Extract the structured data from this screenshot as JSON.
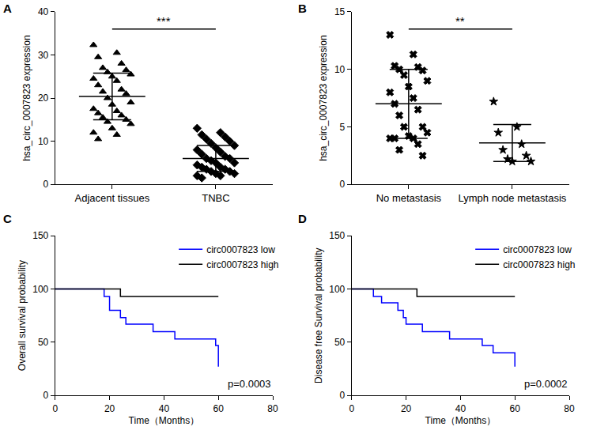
{
  "chart_data": [
    {
      "type": "dotplot",
      "panel": "A",
      "y_label": "hsa_circ_0007823 expression",
      "categories": [
        "Adjacent tissues",
        "TNBC"
      ],
      "groups": [
        {
          "marker": "triangle-up",
          "mean": 20.4,
          "sd": 5.4,
          "values": [
            32.3,
            30.5,
            29.5,
            28.0,
            27.0,
            26.5,
            26.0,
            25.5,
            25.0,
            24.5,
            24.0,
            23.0,
            22.0,
            21.5,
            21.0,
            20.0,
            19.0,
            18.5,
            17.5,
            17.0,
            16.5,
            16.0,
            15.5,
            15.0,
            14.5,
            14.0,
            13.0,
            12.0,
            11.5,
            10.5
          ]
        },
        {
          "marker": "diamond",
          "mean": 6.0,
          "sd": 3.0,
          "values": [
            13.0,
            12.0,
            11.5,
            11.0,
            10.5,
            10.0,
            9.5,
            9.0,
            8.5,
            8.0,
            7.5,
            7.0,
            6.5,
            6.0,
            6.0,
            5.5,
            5.0,
            5.0,
            4.5,
            4.0,
            4.0,
            3.5,
            3.5,
            3.0,
            3.0,
            2.5,
            2.5,
            2.0,
            2.0,
            1.5
          ]
        }
      ],
      "ylim": [
        0,
        40
      ],
      "yticks": [
        0,
        10,
        20,
        30,
        40
      ],
      "annotations": [
        "***"
      ],
      "grid": false,
      "color": "#000000"
    },
    {
      "type": "dotplot",
      "panel": "B",
      "y_label": "hsa_circ_0007823 expression",
      "categories": [
        "No metastasis",
        "Lymph node metastasis"
      ],
      "groups": [
        {
          "marker": "x",
          "mean": 7.0,
          "sd": 3.0,
          "values": [
            13.0,
            11.3,
            10.3,
            10.2,
            10.0,
            9.9,
            9.5,
            9.0,
            8.5,
            8.0,
            7.5,
            7.0,
            6.5,
            6.0,
            5.0,
            5.0,
            4.5,
            4.2,
            4.0,
            4.0,
            4.0,
            3.5,
            3.0,
            2.5
          ]
        },
        {
          "marker": "star",
          "mean": 3.6,
          "sd": 1.6,
          "values": [
            7.2,
            5.0,
            4.5,
            3.5,
            3.0,
            2.5,
            2.2,
            2.0,
            2.0
          ]
        }
      ],
      "ylim": [
        0,
        15
      ],
      "yticks": [
        0,
        5,
        10,
        15
      ],
      "annotations": [
        "**"
      ],
      "grid": false,
      "color": "#000000"
    },
    {
      "type": "line",
      "panel": "C",
      "x_label": "Time（Months）",
      "y_label": "Overall survival probability",
      "series": [
        {
          "name": "circ0007823 low",
          "color": "#0000ff",
          "x": [
            0,
            18,
            20,
            24,
            26,
            36,
            44,
            59,
            60
          ],
          "values": [
            100,
            93,
            80,
            73,
            67,
            60,
            53,
            47,
            27
          ]
        },
        {
          "name": "circ0007823 high",
          "color": "#000000",
          "x": [
            0,
            24,
            60
          ],
          "values": [
            100,
            93,
            93
          ]
        }
      ],
      "xlim": [
        0,
        80
      ],
      "xticks": [
        0,
        20,
        40,
        60,
        80
      ],
      "ylim": [
        0,
        150
      ],
      "yticks": [
        0,
        50,
        100,
        150
      ],
      "annotations": [
        "p=0.0003"
      ],
      "legend": "upper right",
      "grid": false
    },
    {
      "type": "line",
      "panel": "D",
      "x_label": "Time（Months）",
      "y_label": "Disease free Survival probability",
      "series": [
        {
          "name": "circ0007823 low",
          "color": "#0000ff",
          "x": [
            0,
            8,
            11,
            17,
            19,
            20,
            26,
            36,
            48,
            52,
            60
          ],
          "values": [
            100,
            93,
            87,
            80,
            73,
            67,
            60,
            53,
            47,
            40,
            27
          ]
        },
        {
          "name": "circ0007823 high",
          "color": "#000000",
          "x": [
            0,
            24,
            60
          ],
          "values": [
            100,
            93,
            93
          ]
        }
      ],
      "xlim": [
        0,
        80
      ],
      "xticks": [
        0,
        20,
        40,
        60,
        80
      ],
      "ylim": [
        0,
        150
      ],
      "yticks": [
        0,
        50,
        100,
        150
      ],
      "annotations": [
        "p=0.0002"
      ],
      "legend": "upper right",
      "grid": false
    }
  ]
}
